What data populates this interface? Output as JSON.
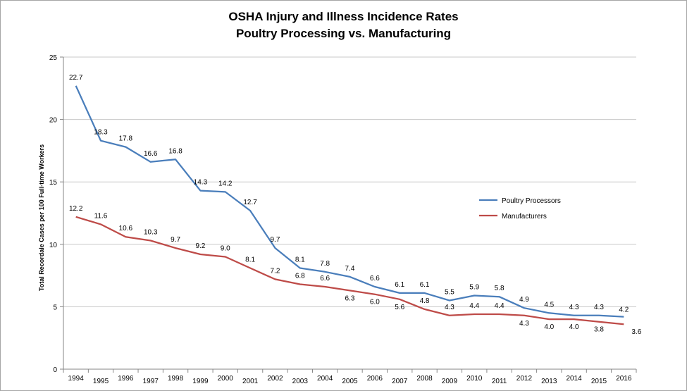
{
  "chart_data": {
    "type": "line",
    "title": "OSHA Injury and Illness Incidence Rates",
    "subtitle": "Poultry Processing vs. Manufacturing",
    "xlabel": "",
    "ylabel": "Total Recordale Cases per 100 Full-time Workers",
    "ylim": [
      0,
      25
    ],
    "yticks": [
      "0",
      "5",
      "10",
      "15",
      "20",
      "25"
    ],
    "categories": [
      "1994",
      "1995",
      "1996",
      "1997",
      "1998",
      "1999",
      "2000",
      "2001",
      "2002",
      "2003",
      "2004",
      "2005",
      "2006",
      "2007",
      "2008",
      "2009",
      "2010",
      "2011",
      "2012",
      "2013",
      "2014",
      "2015",
      "2016"
    ],
    "grid": true,
    "legend_position": "right",
    "series": [
      {
        "name": "Poultry Processors",
        "color": "#4a7ebb",
        "values": [
          22.7,
          18.3,
          17.8,
          16.6,
          16.8,
          14.3,
          14.2,
          12.7,
          9.7,
          8.1,
          7.8,
          7.4,
          6.6,
          6.1,
          6.1,
          5.5,
          5.9,
          5.8,
          4.9,
          4.5,
          4.3,
          4.3,
          4.2
        ],
        "labels": [
          "22.7",
          "18.3",
          "17.8",
          "16.6",
          "16.8",
          "14.3",
          "14.2",
          "12.7",
          "9.7",
          "8.1",
          "7.8",
          "7.4",
          "6.6",
          "6.1",
          "6.1",
          "5.5",
          "5.9",
          "5.8",
          "4.9",
          "4.5",
          "4.3",
          "4.3",
          "4.2"
        ]
      },
      {
        "name": "Manufacturers",
        "color": "#be4b48",
        "values": [
          12.2,
          11.6,
          10.6,
          10.3,
          9.7,
          9.2,
          9.0,
          8.1,
          7.2,
          6.8,
          6.6,
          6.3,
          6.0,
          5.6,
          4.8,
          4.3,
          4.4,
          4.4,
          4.3,
          4.0,
          4.0,
          3.8,
          3.6
        ],
        "labels": [
          "12.2",
          "11.6",
          "10.6",
          "10.3",
          "9.7",
          "9.2",
          "9.0",
          "8.1",
          "7.2",
          "6.8",
          "6.6",
          "6.3",
          "6.0",
          "5.6",
          "4.8",
          "4.3",
          "4.4",
          "4.4",
          "4.3",
          "4.0",
          "4.0",
          "3.8",
          "3.6"
        ]
      }
    ]
  }
}
